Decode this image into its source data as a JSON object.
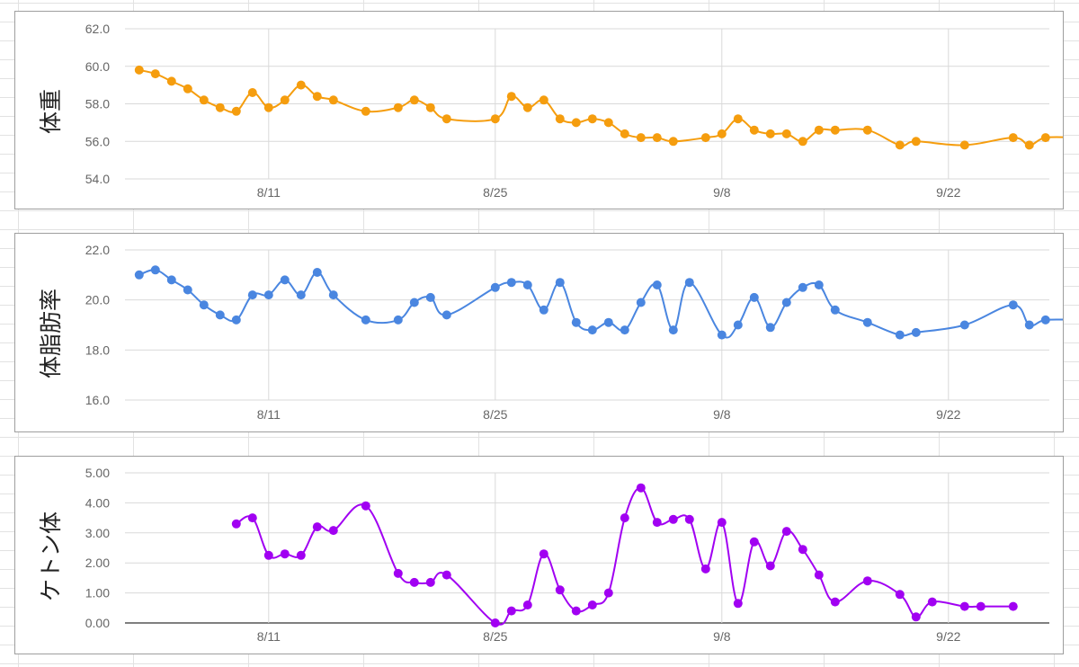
{
  "chart_data": [
    {
      "type": "line",
      "ylabel": "体重",
      "ylim": [
        54,
        62
      ],
      "yticks": [
        "54.0",
        "56.0",
        "58.0",
        "60.0",
        "62.0"
      ],
      "x_ticks": [
        "8/11",
        "8/25",
        "9/8",
        "9/22"
      ],
      "color": "#f59d0e",
      "grid": true,
      "baseline": false,
      "series": [
        {
          "x": [
            -8,
            -7,
            -6,
            -5,
            -4,
            -3,
            -2,
            -1,
            0,
            1,
            2,
            3,
            4,
            6,
            8,
            9,
            10,
            11,
            14,
            15,
            16,
            17,
            18,
            19,
            20,
            21,
            22,
            23,
            24,
            25,
            27,
            28,
            29,
            30,
            31,
            32,
            33,
            34,
            35,
            37,
            39,
            40,
            43,
            46,
            47,
            48,
            50
          ],
          "y": [
            59.8,
            59.6,
            59.2,
            58.8,
            58.2,
            57.8,
            57.6,
            58.6,
            57.8,
            58.2,
            59.0,
            58.4,
            58.2,
            57.6,
            57.8,
            58.2,
            57.8,
            57.2,
            57.2,
            58.4,
            57.8,
            58.2,
            57.2,
            57.0,
            57.2,
            57.0,
            56.4,
            56.2,
            56.2,
            56.0,
            56.2,
            56.4,
            57.2,
            56.6,
            56.4,
            56.4,
            56.0,
            56.6,
            56.6,
            56.6,
            55.8,
            56.0,
            55.8,
            56.2,
            55.8,
            56.2,
            56.2
          ]
        }
      ]
    },
    {
      "type": "line",
      "ylabel": "体脂肪率",
      "ylim": [
        16,
        22
      ],
      "yticks": [
        "16.0",
        "18.0",
        "20.0",
        "22.0"
      ],
      "x_ticks": [
        "8/11",
        "8/25",
        "9/8",
        "9/22"
      ],
      "color": "#4a86e0",
      "grid": true,
      "baseline": false,
      "series": [
        {
          "x": [
            -8,
            -7,
            -6,
            -5,
            -4,
            -3,
            -2,
            -1,
            0,
            1,
            2,
            3,
            4,
            6,
            8,
            9,
            10,
            11,
            14,
            15,
            16,
            17,
            18,
            19,
            20,
            21,
            22,
            23,
            24,
            25,
            26,
            28,
            29,
            30,
            31,
            32,
            33,
            34,
            35,
            37,
            39,
            40,
            43,
            46,
            47,
            48,
            50
          ],
          "y": [
            21.0,
            21.2,
            20.8,
            20.4,
            19.8,
            19.4,
            19.2,
            20.2,
            20.2,
            20.8,
            20.2,
            21.1,
            20.2,
            19.2,
            19.2,
            19.9,
            20.1,
            19.4,
            20.5,
            20.7,
            20.6,
            19.6,
            20.7,
            19.1,
            18.8,
            19.1,
            18.8,
            19.9,
            20.6,
            18.8,
            20.7,
            18.6,
            19.0,
            20.1,
            18.9,
            19.9,
            20.5,
            20.6,
            19.6,
            19.1,
            18.6,
            18.7,
            19.0,
            19.8,
            19.0,
            19.2,
            19.2
          ]
        }
      ]
    },
    {
      "type": "line",
      "ylabel": "ケトン体",
      "ylim": [
        0,
        5
      ],
      "yticks": [
        "0.00",
        "1.00",
        "2.00",
        "3.00",
        "4.00",
        "5.00"
      ],
      "x_ticks": [
        "8/11",
        "8/25",
        "9/8",
        "9/22"
      ],
      "color": "#a100f2",
      "grid": true,
      "baseline": true,
      "series": [
        {
          "x": [
            -2,
            -1,
            0,
            1,
            2,
            3,
            4,
            6,
            8,
            9,
            10,
            11,
            14,
            15,
            16,
            17,
            18,
            19,
            20,
            21,
            22,
            23,
            24,
            25,
            26,
            27,
            28,
            29,
            30,
            31,
            32,
            33,
            34,
            35,
            37,
            39,
            40,
            41,
            43,
            44,
            46
          ],
          "y": [
            3.3,
            3.5,
            2.25,
            2.3,
            2.25,
            3.2,
            3.08,
            3.9,
            1.65,
            1.35,
            1.35,
            1.6,
            0.0,
            0.4,
            0.6,
            2.3,
            1.1,
            0.4,
            0.6,
            1.0,
            3.5,
            4.5,
            3.35,
            3.45,
            3.45,
            1.8,
            3.35,
            0.65,
            2.7,
            1.9,
            3.05,
            2.45,
            1.6,
            0.7,
            1.4,
            0.95,
            0.2,
            0.7,
            0.55,
            0.55,
            0.55
          ]
        }
      ]
    }
  ]
}
